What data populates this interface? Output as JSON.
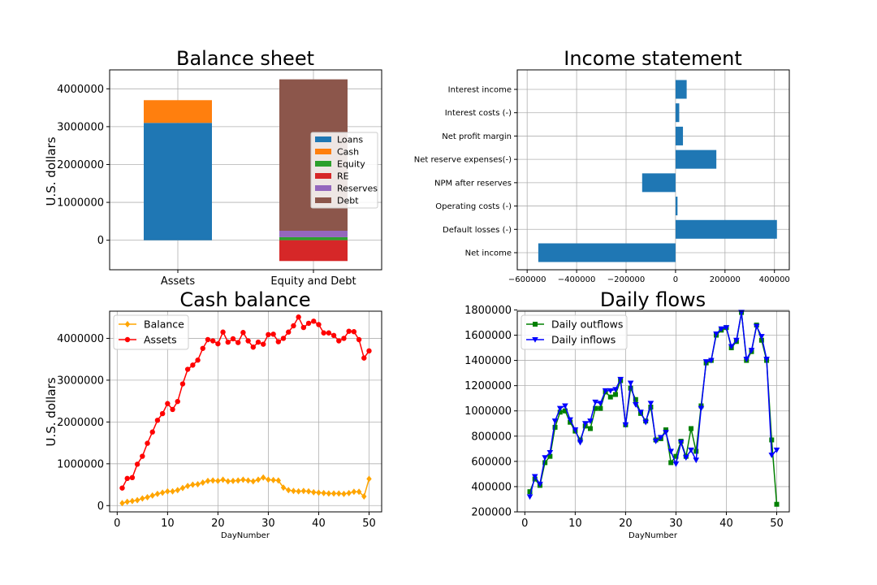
{
  "colors": {
    "Loans": "#1f77b4",
    "Cash": "#ff7f0e",
    "Equity": "#2ca02c",
    "RE": "#d62728",
    "Reserves": "#9467bd",
    "Debt": "#8c564b",
    "bar": "#1f77b4",
    "balance": "#ffa500",
    "assets": "#ff0000",
    "outflows": "#008000",
    "inflows": "#0000ff"
  },
  "chart_data": [
    {
      "type": "bar",
      "stacked": true,
      "title": "Balance sheet",
      "xlabel": "",
      "ylabel": "U.S. dollars",
      "categories": [
        "Assets",
        "Equity and Debt"
      ],
      "series": [
        {
          "name": "Loans",
          "values": [
            3100000,
            0
          ]
        },
        {
          "name": "Cash",
          "values": [
            600000,
            0
          ]
        },
        {
          "name": "Equity",
          "values": [
            0,
            80000
          ]
        },
        {
          "name": "RE",
          "values": [
            0,
            -550000
          ]
        },
        {
          "name": "Reserves",
          "values": [
            0,
            170000
          ]
        },
        {
          "name": "Debt",
          "values": [
            0,
            4000000
          ]
        }
      ],
      "ylim": [
        -780000,
        4500000
      ],
      "yticks": [
        "0",
        "1000000",
        "2000000",
        "3000000",
        "4000000"
      ],
      "ytick_values": [
        0,
        1000000,
        2000000,
        3000000,
        4000000
      ],
      "grid": true,
      "legend": "center-right"
    },
    {
      "type": "bar",
      "orientation": "horizontal",
      "title": "Income statement",
      "categories": [
        "Interest income",
        "Interest costs (-)",
        "Net profit margin",
        "Net reserve expenses(-)",
        "NPM after reserves",
        "Operating costs (-)",
        "Default losses (-)",
        "Net income"
      ],
      "values": [
        45000,
        15000,
        30000,
        165000,
        -135000,
        8000,
        410000,
        -555000
      ],
      "xlim": [
        -640000,
        460000
      ],
      "xticks": [
        "−600000",
        "−400000",
        "−200000",
        "0",
        "200000",
        "400000"
      ],
      "xtick_values": [
        -600000,
        -400000,
        -200000,
        0,
        200000,
        400000
      ],
      "grid": true
    },
    {
      "type": "line",
      "title": "Cash balance",
      "xlabel": "DayNumber",
      "ylabel": "U.S. dollars",
      "x": [
        1,
        2,
        3,
        4,
        5,
        6,
        7,
        8,
        9,
        10,
        11,
        12,
        13,
        14,
        15,
        16,
        17,
        18,
        19,
        20,
        21,
        22,
        23,
        24,
        25,
        26,
        27,
        28,
        29,
        30,
        31,
        32,
        33,
        34,
        35,
        36,
        37,
        38,
        39,
        40,
        41,
        42,
        43,
        44,
        45,
        46,
        47,
        48,
        49,
        50
      ],
      "series": [
        {
          "name": "Balance",
          "marker": "diamond",
          "values": [
            60000,
            90000,
            110000,
            130000,
            170000,
            200000,
            240000,
            280000,
            310000,
            340000,
            340000,
            370000,
            420000,
            470000,
            500000,
            510000,
            550000,
            590000,
            600000,
            590000,
            620000,
            580000,
            590000,
            600000,
            620000,
            600000,
            580000,
            620000,
            670000,
            620000,
            610000,
            600000,
            430000,
            370000,
            350000,
            340000,
            350000,
            340000,
            320000,
            310000,
            300000,
            290000,
            290000,
            290000,
            280000,
            300000,
            330000,
            330000,
            220000,
            640000
          ]
        },
        {
          "name": "Assets",
          "marker": "circle",
          "values": [
            420000,
            650000,
            670000,
            990000,
            1180000,
            1490000,
            1760000,
            2040000,
            2200000,
            2440000,
            2300000,
            2490000,
            2910000,
            3260000,
            3360000,
            3480000,
            3760000,
            3970000,
            3940000,
            3870000,
            4150000,
            3910000,
            3990000,
            3900000,
            4140000,
            3940000,
            3790000,
            3910000,
            3860000,
            4090000,
            4100000,
            3920000,
            4000000,
            4150000,
            4300000,
            4510000,
            4260000,
            4360000,
            4410000,
            4330000,
            4130000,
            4130000,
            4070000,
            3940000,
            4000000,
            4170000,
            4160000,
            3970000,
            3530000,
            3700000
          ]
        }
      ],
      "xlim": [
        -1.5,
        52.5
      ],
      "ylim": [
        -150000,
        4650000
      ],
      "xticks": [
        "0",
        "10",
        "20",
        "30",
        "40",
        "50"
      ],
      "xtick_values": [
        0,
        10,
        20,
        30,
        40,
        50
      ],
      "yticks": [
        "0",
        "1000000",
        "2000000",
        "3000000",
        "4000000"
      ],
      "ytick_values": [
        0,
        1000000,
        2000000,
        3000000,
        4000000
      ],
      "grid": true,
      "legend": "top-left"
    },
    {
      "type": "line",
      "title": "Daily flows",
      "xlabel": "DayNumber",
      "x": [
        1,
        2,
        3,
        4,
        5,
        6,
        7,
        8,
        9,
        10,
        11,
        12,
        13,
        14,
        15,
        16,
        17,
        18,
        19,
        20,
        21,
        22,
        23,
        24,
        25,
        26,
        27,
        28,
        29,
        30,
        31,
        32,
        33,
        34,
        35,
        36,
        37,
        38,
        39,
        40,
        41,
        42,
        43,
        44,
        45,
        46,
        47,
        48,
        49,
        50
      ],
      "series": [
        {
          "name": "Daily outflows",
          "marker": "square",
          "values": [
            360000,
            460000,
            410000,
            590000,
            640000,
            870000,
            990000,
            1000000,
            910000,
            840000,
            770000,
            880000,
            860000,
            1020000,
            1020000,
            1150000,
            1110000,
            1130000,
            1240000,
            890000,
            1180000,
            1090000,
            980000,
            920000,
            1030000,
            770000,
            780000,
            850000,
            590000,
            640000,
            760000,
            640000,
            860000,
            680000,
            1040000,
            1380000,
            1400000,
            1600000,
            1640000,
            1660000,
            1500000,
            1550000,
            1780000,
            1400000,
            1470000,
            1680000,
            1560000,
            1400000,
            770000,
            260000
          ]
        },
        {
          "name": "Daily inflows",
          "marker": "triangle_down",
          "values": [
            320000,
            480000,
            420000,
            630000,
            670000,
            920000,
            1020000,
            1040000,
            930000,
            850000,
            750000,
            900000,
            920000,
            1070000,
            1060000,
            1160000,
            1160000,
            1170000,
            1250000,
            890000,
            1220000,
            1050000,
            990000,
            910000,
            1060000,
            760000,
            790000,
            830000,
            680000,
            580000,
            750000,
            630000,
            690000,
            610000,
            1020000,
            1390000,
            1400000,
            1610000,
            1650000,
            1660000,
            1510000,
            1560000,
            1780000,
            1410000,
            1480000,
            1670000,
            1590000,
            1410000,
            650000,
            690000
          ]
        }
      ],
      "xlim": [
        -1.5,
        52.5
      ],
      "ylim": [
        200000,
        1790000
      ],
      "xticks": [
        "0",
        "10",
        "20",
        "30",
        "40",
        "50"
      ],
      "xtick_values": [
        0,
        10,
        20,
        30,
        40,
        50
      ],
      "yticks": [
        "200000",
        "400000",
        "600000",
        "800000",
        "1000000",
        "1200000",
        "1400000",
        "1600000",
        "1800000"
      ],
      "ytick_values": [
        200000,
        400000,
        600000,
        800000,
        1000000,
        1200000,
        1400000,
        1600000,
        1800000
      ],
      "grid": true,
      "legend": "top-left"
    }
  ]
}
